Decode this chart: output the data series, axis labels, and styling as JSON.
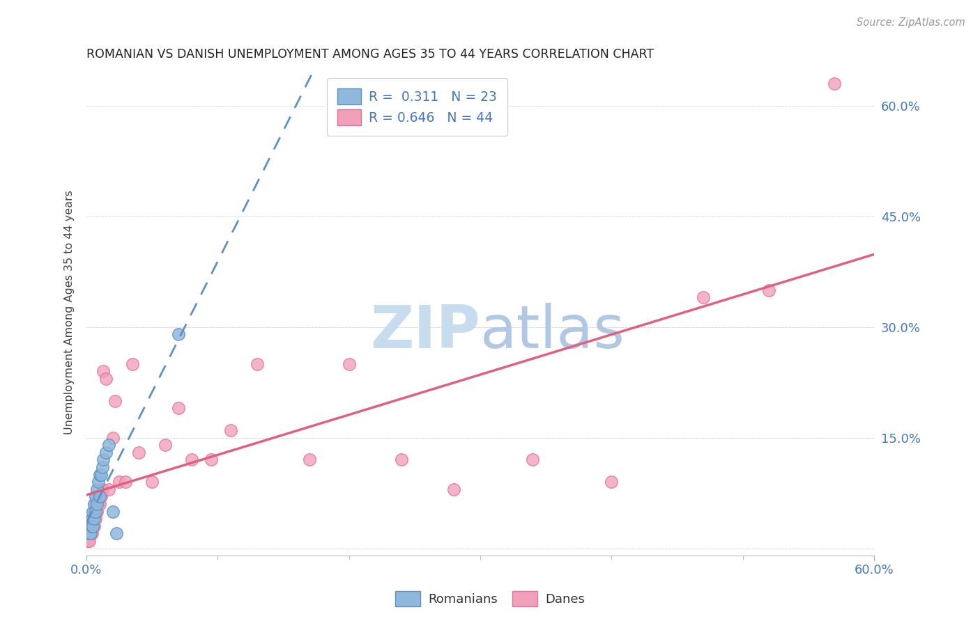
{
  "title": "ROMANIAN VS DANISH UNEMPLOYMENT AMONG AGES 35 TO 44 YEARS CORRELATION CHART",
  "source": "Source: ZipAtlas.com",
  "ylabel": "Unemployment Among Ages 35 to 44 years",
  "xlim": [
    0.0,
    0.6
  ],
  "ylim": [
    -0.01,
    0.65
  ],
  "ytick_vals": [
    0.0,
    0.15,
    0.3,
    0.45,
    0.6
  ],
  "ytick_labels": [
    "",
    "15.0%",
    "30.0%",
    "45.0%",
    "60.0%"
  ],
  "xtick_vals": [
    0.0,
    0.6
  ],
  "xtick_labels": [
    "0.0%",
    "60.0%"
  ],
  "minor_xtick_vals": [
    0.1,
    0.2,
    0.3,
    0.4,
    0.5
  ],
  "romanians_color": "#90B8DC",
  "danes_color": "#F2A0B8",
  "romanians_edge_color": "#6090C0",
  "danes_edge_color": "#E070A0",
  "trendline_romanian_color": "#6090C8",
  "trendline_danish_color": "#E06080",
  "romanians_x": [
    0.002,
    0.003,
    0.004,
    0.004,
    0.005,
    0.005,
    0.006,
    0.006,
    0.007,
    0.007,
    0.008,
    0.008,
    0.009,
    0.01,
    0.01,
    0.011,
    0.012,
    0.013,
    0.015,
    0.017,
    0.02,
    0.023,
    0.07
  ],
  "romanians_y": [
    0.02,
    0.02,
    0.03,
    0.04,
    0.03,
    0.05,
    0.04,
    0.06,
    0.05,
    0.07,
    0.06,
    0.08,
    0.09,
    0.07,
    0.1,
    0.1,
    0.11,
    0.12,
    0.13,
    0.14,
    0.05,
    0.02,
    0.29
  ],
  "danes_x": [
    0.001,
    0.002,
    0.002,
    0.003,
    0.003,
    0.004,
    0.004,
    0.005,
    0.005,
    0.006,
    0.006,
    0.007,
    0.007,
    0.008,
    0.008,
    0.009,
    0.01,
    0.011,
    0.012,
    0.013,
    0.015,
    0.017,
    0.02,
    0.022,
    0.025,
    0.03,
    0.035,
    0.04,
    0.05,
    0.06,
    0.07,
    0.08,
    0.095,
    0.11,
    0.13,
    0.17,
    0.2,
    0.24,
    0.28,
    0.34,
    0.4,
    0.47,
    0.52,
    0.57
  ],
  "danes_y": [
    0.01,
    0.01,
    0.02,
    0.02,
    0.03,
    0.02,
    0.04,
    0.03,
    0.04,
    0.03,
    0.05,
    0.04,
    0.06,
    0.05,
    0.07,
    0.06,
    0.06,
    0.07,
    0.08,
    0.24,
    0.23,
    0.08,
    0.15,
    0.2,
    0.09,
    0.09,
    0.25,
    0.13,
    0.09,
    0.14,
    0.19,
    0.12,
    0.12,
    0.16,
    0.25,
    0.12,
    0.25,
    0.12,
    0.08,
    0.12,
    0.09,
    0.34,
    0.35,
    0.63
  ],
  "legend1_label": "R =  0.311   N = 23",
  "legend2_label": "R = 0.646   N = 44",
  "legend_r1_color": "#4477BB",
  "legend_r2_color": "#4477BB",
  "watermark_zip_color": "#C8DCF0",
  "watermark_atlas_color": "#B0C8E4"
}
